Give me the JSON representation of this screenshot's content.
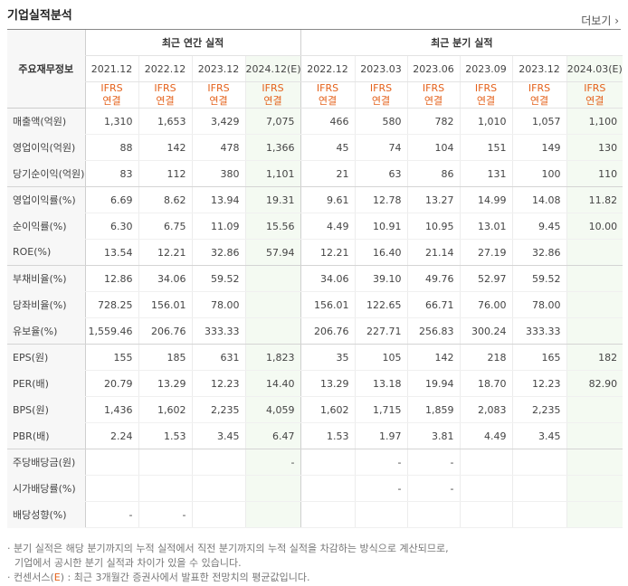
{
  "section_title": "기업실적분석",
  "more_link": "더보기",
  "row_header_label": "주요재무정보",
  "groups": {
    "annual": "최근 연간 실적",
    "quarterly": "최근 분기 실적"
  },
  "periods": [
    "2021.12",
    "2022.12",
    "2023.12",
    "2024.12(E)",
    "2022.12",
    "2023.03",
    "2023.06",
    "2023.09",
    "2023.12",
    "2024.03(E)"
  ],
  "standard": {
    "top": "IFRS",
    "bottom": "연결"
  },
  "rows": [
    {
      "label": "매출액(억원)",
      "values": [
        "1,310",
        "1,653",
        "3,429",
        "7,075",
        "466",
        "580",
        "782",
        "1,010",
        "1,057",
        "1,100"
      ]
    },
    {
      "label": "영업이익(억원)",
      "values": [
        "88",
        "142",
        "478",
        "1,366",
        "45",
        "74",
        "104",
        "151",
        "149",
        "130"
      ]
    },
    {
      "label": "당기순이익(억원)",
      "values": [
        "83",
        "112",
        "380",
        "1,101",
        "21",
        "63",
        "86",
        "131",
        "100",
        "110"
      ]
    },
    {
      "label": "영업이익률(%)",
      "values": [
        "6.69",
        "8.62",
        "13.94",
        "19.31",
        "9.61",
        "12.78",
        "13.27",
        "14.99",
        "14.08",
        "11.82"
      ]
    },
    {
      "label": "순이익률(%)",
      "values": [
        "6.30",
        "6.75",
        "11.09",
        "15.56",
        "4.49",
        "10.91",
        "10.95",
        "13.01",
        "9.45",
        "10.00"
      ]
    },
    {
      "label": "ROE(%)",
      "values": [
        "13.54",
        "12.21",
        "32.86",
        "57.94",
        "12.21",
        "16.40",
        "21.14",
        "27.19",
        "32.86",
        ""
      ]
    },
    {
      "label": "부채비율(%)",
      "values": [
        "12.86",
        "34.06",
        "59.52",
        "",
        "34.06",
        "39.10",
        "49.76",
        "52.97",
        "59.52",
        ""
      ]
    },
    {
      "label": "당좌비율(%)",
      "values": [
        "728.25",
        "156.01",
        "78.00",
        "",
        "156.01",
        "122.65",
        "66.71",
        "76.00",
        "78.00",
        ""
      ]
    },
    {
      "label": "유보율(%)",
      "values": [
        "1,559.46",
        "206.76",
        "333.33",
        "",
        "206.76",
        "227.71",
        "256.83",
        "300.24",
        "333.33",
        ""
      ]
    },
    {
      "label": "EPS(원)",
      "values": [
        "155",
        "185",
        "631",
        "1,823",
        "35",
        "105",
        "142",
        "218",
        "165",
        "182"
      ]
    },
    {
      "label": "PER(배)",
      "values": [
        "20.79",
        "13.29",
        "12.23",
        "14.40",
        "13.29",
        "13.18",
        "19.94",
        "18.70",
        "12.23",
        "82.90"
      ]
    },
    {
      "label": "BPS(원)",
      "values": [
        "1,436",
        "1,602",
        "2,235",
        "4,059",
        "1,602",
        "1,715",
        "1,859",
        "2,083",
        "2,235",
        ""
      ]
    },
    {
      "label": "PBR(배)",
      "values": [
        "2.24",
        "1.53",
        "3.45",
        "6.47",
        "1.53",
        "1.97",
        "3.81",
        "4.49",
        "3.45",
        ""
      ]
    },
    {
      "label": "주당배당금(원)",
      "values": [
        "",
        "",
        "",
        "-",
        "",
        "-",
        "-",
        "",
        "",
        ""
      ]
    },
    {
      "label": "시가배당률(%)",
      "values": [
        "",
        "",
        "",
        "",
        "",
        "-",
        "-",
        "",
        "",
        ""
      ]
    },
    {
      "label": "배당성향(%)",
      "values": [
        "-",
        "-",
        "",
        "",
        "",
        "",
        "",
        "",
        "",
        ""
      ]
    }
  ],
  "notes": {
    "line1": "분기 실적은 해당 분기까지의 누적 실적에서 직전 분기까지의 누적 실적을 차감하는 방식으로 계산되므로,",
    "line2": "기업에서 공시한 분기 실적과 차이가 있을 수 있습니다.",
    "line3_prefix": "컨센서스(",
    "line3_e": "E",
    "line3_suffix": ") : 최근 3개월간 증권사에서 발표한 전망치의 평균값입니다."
  }
}
